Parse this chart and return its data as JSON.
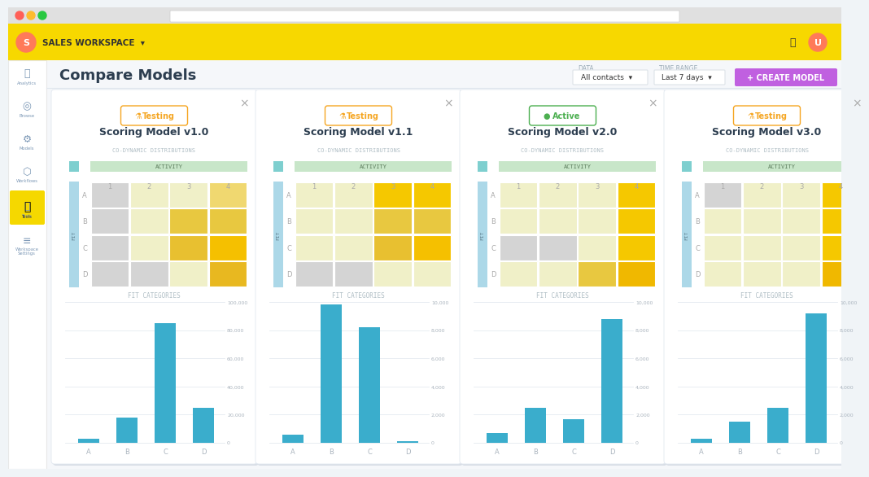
{
  "bg_color": "#f0f4f7",
  "topbar_color": "#f7d800",
  "main_bg": "#f0f4f7",
  "card_bg": "#ffffff",
  "title": "Compare Models",
  "models": [
    {
      "name": "Scoring Model v1.0",
      "status": "Testing",
      "status_color": "#f5a623",
      "active": false,
      "matrix": [
        [
          "#d4d4d4",
          "#f0f0c8",
          "#f0f0c8",
          "#f0d870"
        ],
        [
          "#d4d4d4",
          "#f0f0c8",
          "#e8c840",
          "#e8c840"
        ],
        [
          "#d4d4d4",
          "#f0f0c8",
          "#e8c030",
          "#f5c000"
        ],
        [
          "#d4d4d4",
          "#d4d4d4",
          "#f0f0c8",
          "#e8b820"
        ]
      ],
      "bar_values": [
        3000,
        18000,
        85000,
        25000
      ],
      "bar_max": 100000,
      "bar_yticks": [
        0,
        20000,
        40000,
        60000,
        80000,
        100000
      ],
      "bar_tick_labels": [
        "0",
        "20,000",
        "40,000",
        "60,000",
        "80,000",
        "100,000"
      ]
    },
    {
      "name": "Scoring Model v1.1",
      "status": "Testing",
      "status_color": "#f5a623",
      "active": false,
      "matrix": [
        [
          "#f0f0c8",
          "#f0f0c8",
          "#f5c800",
          "#f5c800"
        ],
        [
          "#f0f0c8",
          "#f0f0c8",
          "#e8c840",
          "#e8c840"
        ],
        [
          "#f0f0c8",
          "#f0f0c8",
          "#e8c030",
          "#f5c000"
        ],
        [
          "#d4d4d4",
          "#d4d4d4",
          "#f0f0c8",
          "#f0f0c8"
        ]
      ],
      "bar_values": [
        600,
        9800,
        8200,
        100
      ],
      "bar_max": 10000,
      "bar_yticks": [
        0,
        2000,
        4000,
        6000,
        8000,
        10000
      ],
      "bar_tick_labels": [
        "0",
        "2,000",
        "4,000",
        "6,000",
        "8,000",
        "10,000"
      ]
    },
    {
      "name": "Scoring Model v2.0",
      "status": "Active",
      "status_color": "#4caf50",
      "active": true,
      "matrix": [
        [
          "#f0f0c8",
          "#f0f0c8",
          "#f0f0c8",
          "#f5c800"
        ],
        [
          "#f0f0c8",
          "#f0f0c8",
          "#f0f0c8",
          "#f5c800"
        ],
        [
          "#d4d4d4",
          "#d4d4d4",
          "#f0f0c8",
          "#f5c800"
        ],
        [
          "#f0f0c8",
          "#f0f0c8",
          "#e8c840",
          "#f0b800"
        ]
      ],
      "bar_values": [
        700,
        2500,
        1700,
        8800
      ],
      "bar_max": 10000,
      "bar_yticks": [
        0,
        2000,
        4000,
        6000,
        8000,
        10000
      ],
      "bar_tick_labels": [
        "0",
        "2,000",
        "4,000",
        "6,000",
        "8,000",
        "10,000"
      ]
    },
    {
      "name": "Scoring Model v3.0",
      "status": "Testing",
      "status_color": "#f5a623",
      "active": false,
      "matrix": [
        [
          "#d4d4d4",
          "#f0f0c8",
          "#f0f0c8",
          "#f5c800"
        ],
        [
          "#f0f0c8",
          "#f0f0c8",
          "#f0f0c8",
          "#f5c800"
        ],
        [
          "#f0f0c8",
          "#f0f0c8",
          "#f0f0c8",
          "#f5c800"
        ],
        [
          "#f0f0c8",
          "#f0f0c8",
          "#f0f0c8",
          "#f0b800"
        ]
      ],
      "bar_values": [
        300,
        1500,
        2500,
        9200
      ],
      "bar_max": 10000,
      "bar_yticks": [
        0,
        2000,
        4000,
        6000,
        8000,
        10000
      ],
      "bar_tick_labels": [
        "0",
        "2,000",
        "4,000",
        "6,000",
        "8,000",
        "10,000"
      ]
    }
  ],
  "fit_rows": [
    "A",
    "B",
    "C",
    "D"
  ],
  "activity_cols": [
    "1",
    "2",
    "3",
    "4"
  ],
  "bar_color": "#3aadcc",
  "bar_categories": [
    "A",
    "B",
    "C",
    "D"
  ]
}
